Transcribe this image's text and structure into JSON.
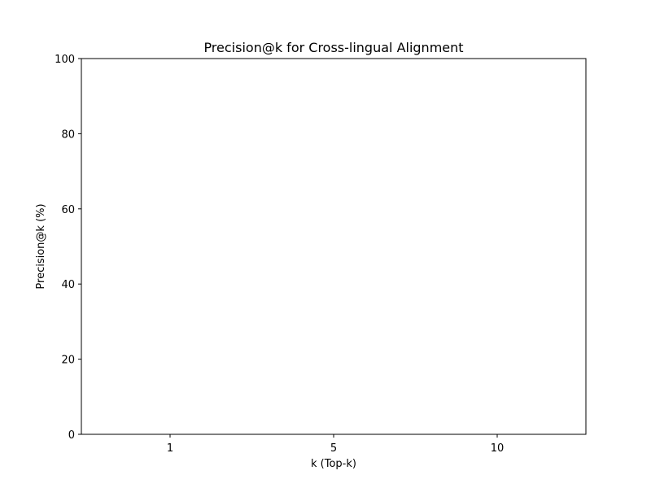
{
  "chart_data": {
    "type": "bar",
    "title": "Precision@k for Cross-lingual Alignment",
    "xlabel": "k (Top-k)",
    "ylabel": "Precision@k (%)",
    "categories": [
      "1",
      "5",
      "10"
    ],
    "series": [],
    "ylim": [
      0,
      100
    ],
    "yticks": [
      0,
      20,
      40,
      60,
      80,
      100
    ],
    "grid": false,
    "colors": {
      "axis": "#000000",
      "background": "#ffffff"
    }
  }
}
